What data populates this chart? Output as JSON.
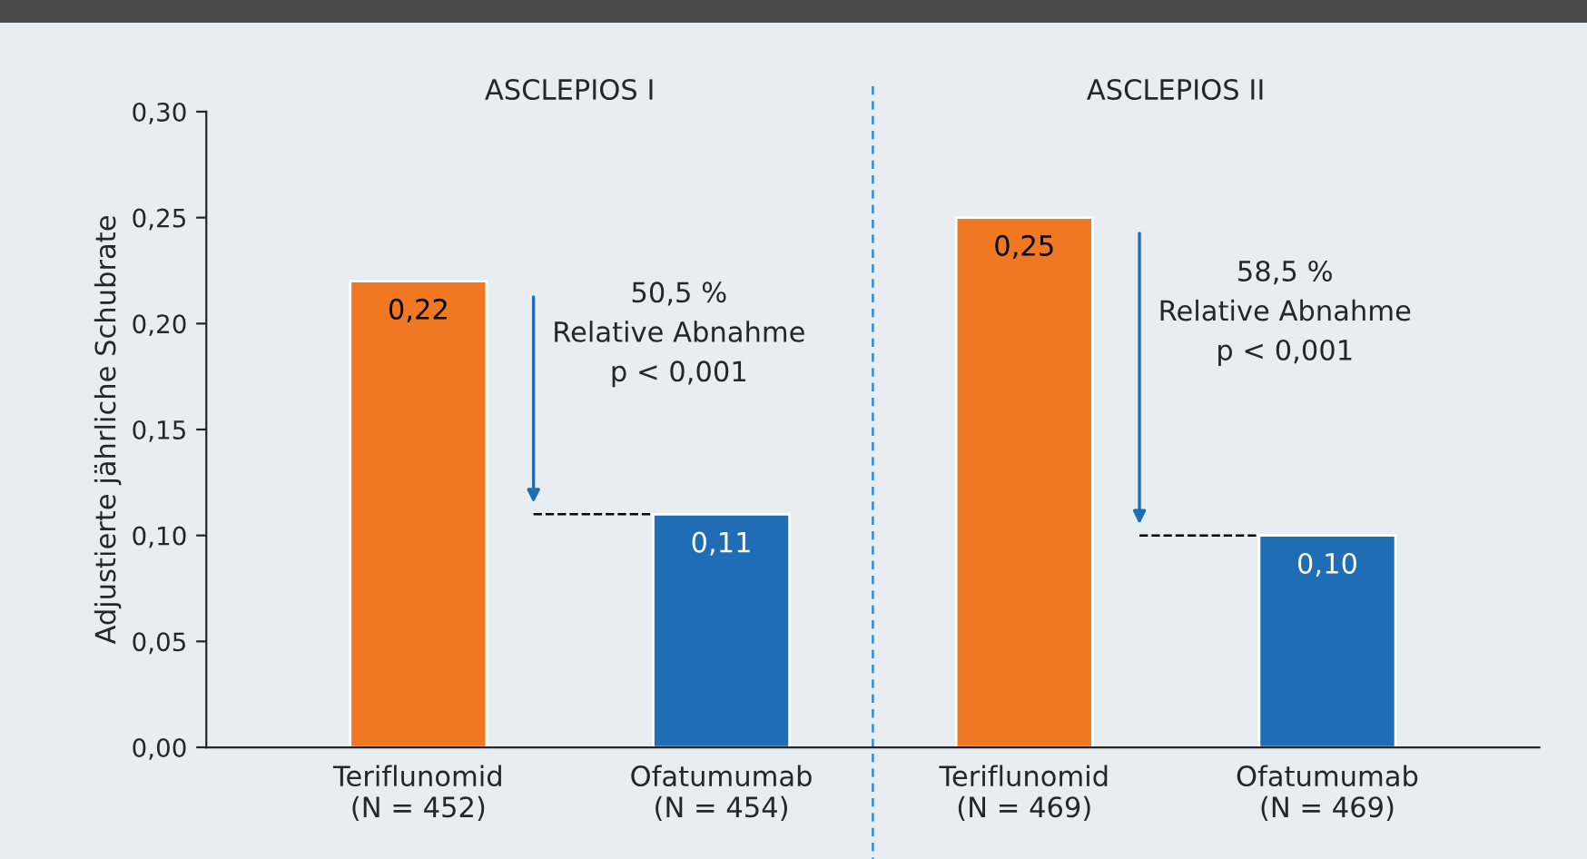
{
  "chart_data": {
    "type": "bar",
    "ylabel": "Adjustierte jährliche Schubrate",
    "categories": [
      "Teriflunomid\n(N = 452)",
      "Ofatumumab\n(N = 454)",
      "Teriflunomid\n(N = 469)",
      "Ofatumumab\n(N = 469)"
    ],
    "values": [
      0.22,
      0.11,
      0.25,
      0.1
    ],
    "colors": [
      "#f07822",
      "#1f6db5",
      "#f07822",
      "#1f6db5"
    ],
    "value_labels": [
      "0,22",
      "0,11",
      "0,25",
      "0,10"
    ],
    "ylim": [
      0,
      0.3
    ],
    "yticks": [
      {
        "value": 0,
        "label": "0,00"
      },
      {
        "value": 0.05,
        "label": "0,05"
      },
      {
        "value": 0.1,
        "label": "0,10"
      },
      {
        "value": 0.15,
        "label": "0,15"
      },
      {
        "value": 0.2,
        "label": "0,20"
      },
      {
        "value": 0.25,
        "label": "0,25"
      },
      {
        "value": 0.3,
        "label": "0,30"
      }
    ],
    "annotations": [
      "ASCLEPIOS I",
      "ASCLEPIOS II",
      "50,5 %\nRelative Abnahme\np < 0,001",
      "58,5 %\nRelative Abnahme\np < 0,001"
    ],
    "ref_lines": [
      {
        "axis": "y",
        "value": 0.11,
        "color": "#000000",
        "line_style": "dashed"
      },
      {
        "axis": "y",
        "value": 0.1,
        "color": "#000000",
        "line_style": "dashed"
      }
    ],
    "grid": false
  }
}
